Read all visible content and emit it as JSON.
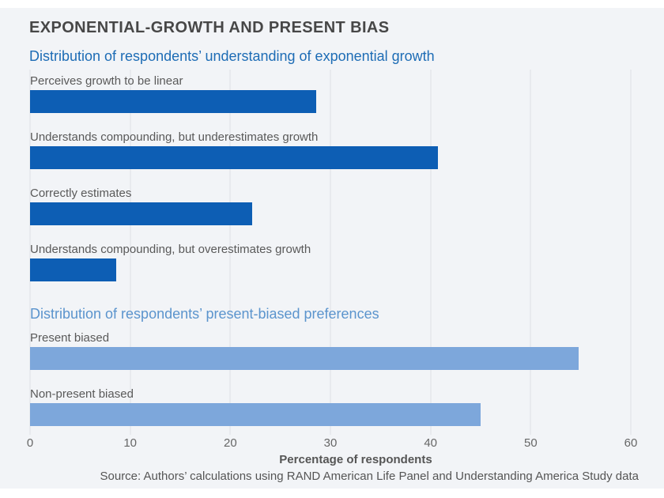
{
  "page": {
    "title": "EXPONENTIAL-GROWTH AND PRESENT BIAS"
  },
  "colors": {
    "panel_background": "#f2f4f7",
    "dark_bar": "#0d5eb4",
    "light_bar": "#7da7db",
    "heading1": "#1d6cb5",
    "heading2": "#5b94cd",
    "title_text": "#474747",
    "gridline": "#e8eaee"
  },
  "chart_data": {
    "type": "bar",
    "orientation": "horizontal",
    "title": "EXPONENTIAL-GROWTH AND PRESENT BIAS",
    "xlabel": "Percentage of respondents",
    "xlim": [
      0,
      60
    ],
    "xticks": [
      0,
      10,
      20,
      30,
      40,
      50,
      60
    ],
    "grid": "vertical",
    "sections": [
      {
        "heading": "Distribution of respondents’ understanding of exponential growth",
        "color": "#0d5eb4",
        "bars": [
          {
            "label": "Perceives growth to be linear",
            "value": 28.6
          },
          {
            "label": "Understands compounding, but underestimates growth",
            "value": 40.7
          },
          {
            "label": "Correctly estimates",
            "value": 22.2
          },
          {
            "label": "Understands compounding, but overestimates growth",
            "value": 8.6
          }
        ]
      },
      {
        "heading": "Distribution of respondents’ present-biased preferences",
        "color": "#7da7db",
        "bars": [
          {
            "label": "Present biased",
            "value": 54.8
          },
          {
            "label": "Non-present biased",
            "value": 45.0
          }
        ]
      }
    ],
    "source": "Source: Authors’ calculations using RAND American Life Panel and Understanding America Study data"
  }
}
